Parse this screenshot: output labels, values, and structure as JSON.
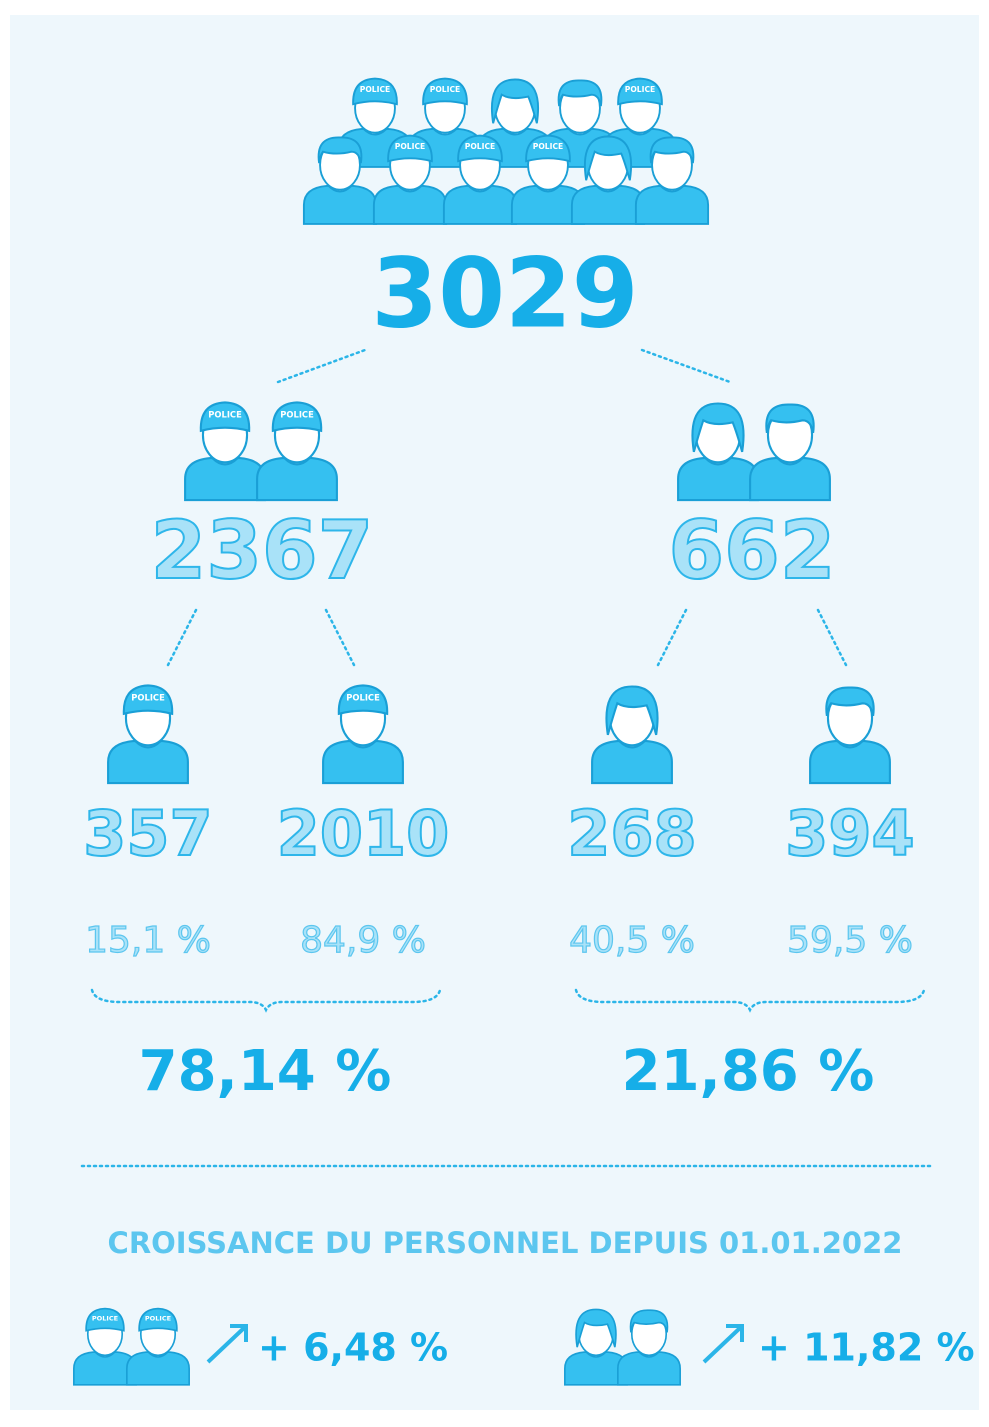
{
  "cap_label": "POLICE",
  "total": "3029",
  "groups": [
    {
      "value": "2367",
      "share": "78,14 %",
      "subgroups": [
        {
          "value": "357",
          "percent": "15,1 %"
        },
        {
          "value": "2010",
          "percent": "84,9 %"
        }
      ]
    },
    {
      "value": "662",
      "share": "21,86 %",
      "subgroups": [
        {
          "value": "268",
          "percent": "40,5 %"
        },
        {
          "value": "394",
          "percent": "59,5 %"
        }
      ]
    }
  ],
  "growth": {
    "title": "CROISSANCE DU PERSONNEL DEPUIS 01.01.2022",
    "items": [
      "+ 6,48 %",
      "+ 11,82 %"
    ]
  }
}
